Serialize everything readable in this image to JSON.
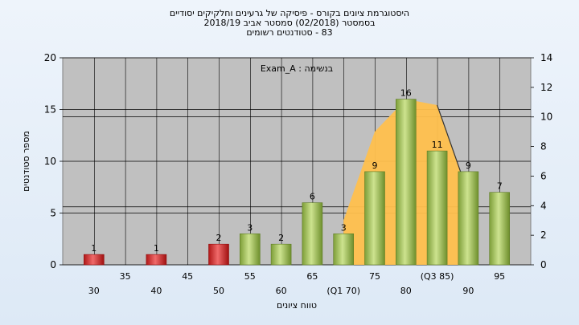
{
  "chart_data": {
    "type": "bar",
    "title_lines": [
      "היסטוגרמת ציונים בקורס - פיסיקה של גרעינים וחלקיקים יסודיים",
      "בסמסטר  (02/2018)  סמסטר אביב 2018/19",
      "83 - סטודנטים רשומים"
    ],
    "annotation": "Exam_A : בנשימה",
    "ylabel": "מספר סטודנטים",
    "xlabel": "טווח ציונים",
    "ylim": [
      0,
      20
    ],
    "y_ticks": [
      0,
      5,
      10,
      15,
      20
    ],
    "y2lim": [
      0,
      14
    ],
    "y2_ticks": [
      0,
      2,
      4,
      6,
      8,
      10,
      12,
      14
    ],
    "xlim": [
      25,
      100
    ],
    "x_ticks_lower": [
      "30",
      "40",
      "50",
      "60",
      "(Q1 70)",
      "80",
      "90"
    ],
    "x_ticks_lower_pos": [
      30,
      40,
      50,
      60,
      70,
      80,
      90
    ],
    "x_ticks_upper": [
      "35",
      "45",
      "55",
      "65",
      "75",
      "(Q3 85)",
      "95"
    ],
    "x_ticks_upper_pos": [
      35,
      45,
      55,
      65,
      75,
      85,
      95
    ],
    "bars": [
      {
        "x": 30,
        "value": 1,
        "color": "red"
      },
      {
        "x": 40,
        "value": 1,
        "color": "red"
      },
      {
        "x": 50,
        "value": 2,
        "color": "red"
      },
      {
        "x": 55,
        "value": 3,
        "color": "green"
      },
      {
        "x": 60,
        "value": 2,
        "color": "green"
      },
      {
        "x": 65,
        "value": 6,
        "color": "green"
      },
      {
        "x": 70,
        "value": 3,
        "color": "green"
      },
      {
        "x": 75,
        "value": 9,
        "color": "green"
      },
      {
        "x": 80,
        "value": 16,
        "color": "green"
      },
      {
        "x": 85,
        "value": 11,
        "color": "green"
      },
      {
        "x": 90,
        "value": 9,
        "color": "green"
      },
      {
        "x": 95,
        "value": 7,
        "color": "green"
      }
    ],
    "box_area": {
      "x": [
        70,
        75,
        80,
        85,
        90
      ],
      "y2": [
        3,
        9,
        11.2,
        10.8,
        4.8
      ]
    },
    "extra_gridlines_y": [
      14.3,
      5.6
    ],
    "colors": {
      "plot_bg": "#c0c0c0",
      "grid": "#000000",
      "area": "#ffc04d",
      "bar_red": "#d42a2a",
      "bar_green": "#94b84a"
    },
    "grid": true
  }
}
